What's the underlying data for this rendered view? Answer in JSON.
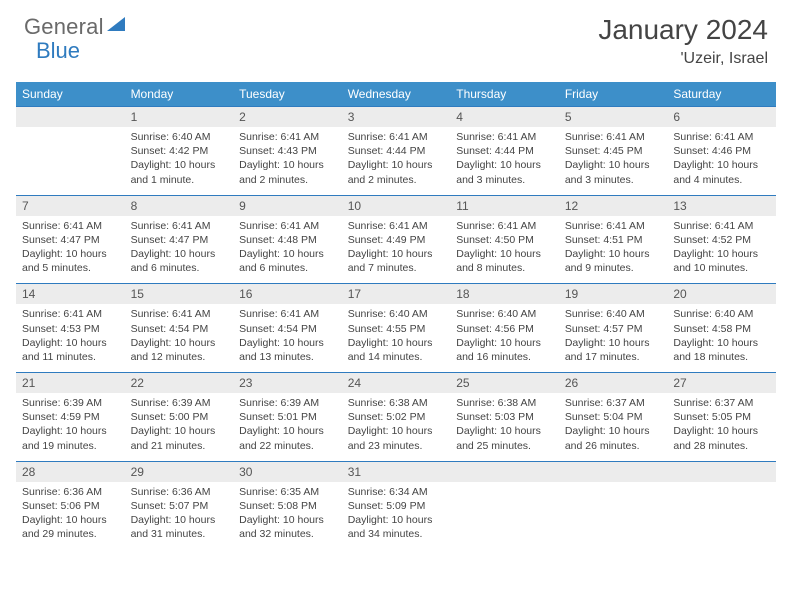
{
  "brand": {
    "part1": "General",
    "part2": "Blue"
  },
  "title": "January 2024",
  "location": "'Uzeir, Israel",
  "colors": {
    "header_bg": "#3d8fc9",
    "accent_line": "#2f7bbf",
    "daynum_bg": "#ececec",
    "text": "#444444"
  },
  "weekdays": [
    "Sunday",
    "Monday",
    "Tuesday",
    "Wednesday",
    "Thursday",
    "Friday",
    "Saturday"
  ],
  "weeks": [
    [
      null,
      {
        "n": "1",
        "sr": "6:40 AM",
        "ss": "4:42 PM",
        "dl": "10 hours and 1 minute."
      },
      {
        "n": "2",
        "sr": "6:41 AM",
        "ss": "4:43 PM",
        "dl": "10 hours and 2 minutes."
      },
      {
        "n": "3",
        "sr": "6:41 AM",
        "ss": "4:44 PM",
        "dl": "10 hours and 2 minutes."
      },
      {
        "n": "4",
        "sr": "6:41 AM",
        "ss": "4:44 PM",
        "dl": "10 hours and 3 minutes."
      },
      {
        "n": "5",
        "sr": "6:41 AM",
        "ss": "4:45 PM",
        "dl": "10 hours and 3 minutes."
      },
      {
        "n": "6",
        "sr": "6:41 AM",
        "ss": "4:46 PM",
        "dl": "10 hours and 4 minutes."
      }
    ],
    [
      {
        "n": "7",
        "sr": "6:41 AM",
        "ss": "4:47 PM",
        "dl": "10 hours and 5 minutes."
      },
      {
        "n": "8",
        "sr": "6:41 AM",
        "ss": "4:47 PM",
        "dl": "10 hours and 6 minutes."
      },
      {
        "n": "9",
        "sr": "6:41 AM",
        "ss": "4:48 PM",
        "dl": "10 hours and 6 minutes."
      },
      {
        "n": "10",
        "sr": "6:41 AM",
        "ss": "4:49 PM",
        "dl": "10 hours and 7 minutes."
      },
      {
        "n": "11",
        "sr": "6:41 AM",
        "ss": "4:50 PM",
        "dl": "10 hours and 8 minutes."
      },
      {
        "n": "12",
        "sr": "6:41 AM",
        "ss": "4:51 PM",
        "dl": "10 hours and 9 minutes."
      },
      {
        "n": "13",
        "sr": "6:41 AM",
        "ss": "4:52 PM",
        "dl": "10 hours and 10 minutes."
      }
    ],
    [
      {
        "n": "14",
        "sr": "6:41 AM",
        "ss": "4:53 PM",
        "dl": "10 hours and 11 minutes."
      },
      {
        "n": "15",
        "sr": "6:41 AM",
        "ss": "4:54 PM",
        "dl": "10 hours and 12 minutes."
      },
      {
        "n": "16",
        "sr": "6:41 AM",
        "ss": "4:54 PM",
        "dl": "10 hours and 13 minutes."
      },
      {
        "n": "17",
        "sr": "6:40 AM",
        "ss": "4:55 PM",
        "dl": "10 hours and 14 minutes."
      },
      {
        "n": "18",
        "sr": "6:40 AM",
        "ss": "4:56 PM",
        "dl": "10 hours and 16 minutes."
      },
      {
        "n": "19",
        "sr": "6:40 AM",
        "ss": "4:57 PM",
        "dl": "10 hours and 17 minutes."
      },
      {
        "n": "20",
        "sr": "6:40 AM",
        "ss": "4:58 PM",
        "dl": "10 hours and 18 minutes."
      }
    ],
    [
      {
        "n": "21",
        "sr": "6:39 AM",
        "ss": "4:59 PM",
        "dl": "10 hours and 19 minutes."
      },
      {
        "n": "22",
        "sr": "6:39 AM",
        "ss": "5:00 PM",
        "dl": "10 hours and 21 minutes."
      },
      {
        "n": "23",
        "sr": "6:39 AM",
        "ss": "5:01 PM",
        "dl": "10 hours and 22 minutes."
      },
      {
        "n": "24",
        "sr": "6:38 AM",
        "ss": "5:02 PM",
        "dl": "10 hours and 23 minutes."
      },
      {
        "n": "25",
        "sr": "6:38 AM",
        "ss": "5:03 PM",
        "dl": "10 hours and 25 minutes."
      },
      {
        "n": "26",
        "sr": "6:37 AM",
        "ss": "5:04 PM",
        "dl": "10 hours and 26 minutes."
      },
      {
        "n": "27",
        "sr": "6:37 AM",
        "ss": "5:05 PM",
        "dl": "10 hours and 28 minutes."
      }
    ],
    [
      {
        "n": "28",
        "sr": "6:36 AM",
        "ss": "5:06 PM",
        "dl": "10 hours and 29 minutes."
      },
      {
        "n": "29",
        "sr": "6:36 AM",
        "ss": "5:07 PM",
        "dl": "10 hours and 31 minutes."
      },
      {
        "n": "30",
        "sr": "6:35 AM",
        "ss": "5:08 PM",
        "dl": "10 hours and 32 minutes."
      },
      {
        "n": "31",
        "sr": "6:34 AM",
        "ss": "5:09 PM",
        "dl": "10 hours and 34 minutes."
      },
      null,
      null,
      null
    ]
  ],
  "labels": {
    "sunrise": "Sunrise:",
    "sunset": "Sunset:",
    "daylight": "Daylight:"
  }
}
